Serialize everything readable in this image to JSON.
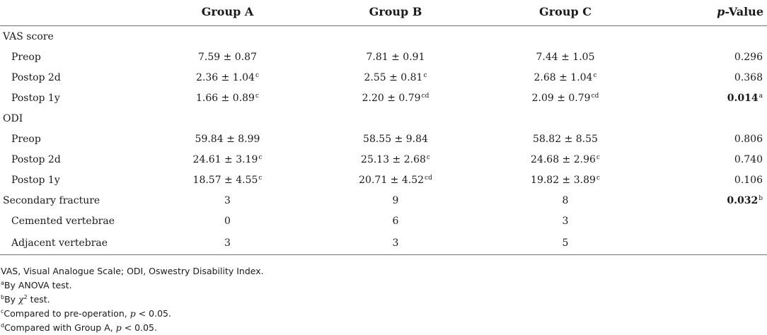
{
  "table": {
    "header": {
      "blank": "",
      "col_a": "Group A",
      "col_b": "Group B",
      "col_c": "Group C",
      "col_p_italic": "p",
      "col_p_rest": "-Value"
    },
    "rows": [
      {
        "label": "VAS score",
        "a": "",
        "b": "",
        "c": "",
        "p": ""
      },
      {
        "label": "Preop",
        "a": "7.59 ± 0.87",
        "b": "7.81 ± 0.91",
        "c": "7.44 ± 1.05",
        "p": "0.296"
      },
      {
        "label": "Postop 2d",
        "a": "2.36 ± 1.04",
        "a_sup": "c",
        "b": "2.55 ± 0.81",
        "b_sup": "c",
        "c": "2.68 ± 1.04",
        "c_sup": "c",
        "p": "0.368"
      },
      {
        "label": "Postop 1y",
        "a": "1.66 ± 0.89",
        "a_sup": "c",
        "b": "2.20 ± 0.79",
        "b_sup": "cd",
        "c": "2.09 ± 0.79",
        "c_sup": "cd",
        "p": "0.014",
        "p_sup": "a"
      },
      {
        "label": "ODI",
        "a": "",
        "b": "",
        "c": "",
        "p": ""
      },
      {
        "label": "Preop",
        "a": "59.84 ± 8.99",
        "b": "58.55 ± 9.84",
        "c": "58.82 ± 8.55",
        "p": "0.806"
      },
      {
        "label": "Postop 2d",
        "a": "24.61 ± 3.19",
        "a_sup": "c",
        "b": "25.13 ± 2.68",
        "b_sup": "c",
        "c": "24.68 ± 2.96",
        "c_sup": "c",
        "p": "0.740"
      },
      {
        "label": "Postop 1y",
        "a": "18.57 ± 4.55",
        "a_sup": "c",
        "b": "20.71 ± 4.52",
        "b_sup": "cd",
        "c": "19.82 ± 3.89",
        "c_sup": "c",
        "p": "0.106"
      },
      {
        "label": "Secondary fracture",
        "a": "3",
        "b": "9",
        "c": "8",
        "p": "0.032",
        "p_sup": "b"
      },
      {
        "label": "Cemented vertebrae",
        "a": "0",
        "b": "6",
        "c": "3",
        "p": ""
      },
      {
        "label": "Adjacent vertebrae",
        "a": "3",
        "b": "3",
        "c": "5",
        "p": ""
      }
    ]
  },
  "notes": {
    "abbrev": "VAS, Visual Analogue Scale; ODI, Oswestry Disability Index.",
    "a_mark": "a",
    "a_text": "By ANOVA test.",
    "b_mark": "b",
    "b_text_pre": "By ",
    "b_chi": "χ",
    "b_chi_sup": "2",
    "b_text_post": " test.",
    "c_mark": "c",
    "c_text_pre": "Compared to pre-operation, ",
    "c_p": "p",
    "c_text_post": " < 0.05.",
    "d_mark": "d",
    "d_text_pre": "Compared with Group A, ",
    "d_p": "p",
    "d_text_post": " < 0.05."
  }
}
